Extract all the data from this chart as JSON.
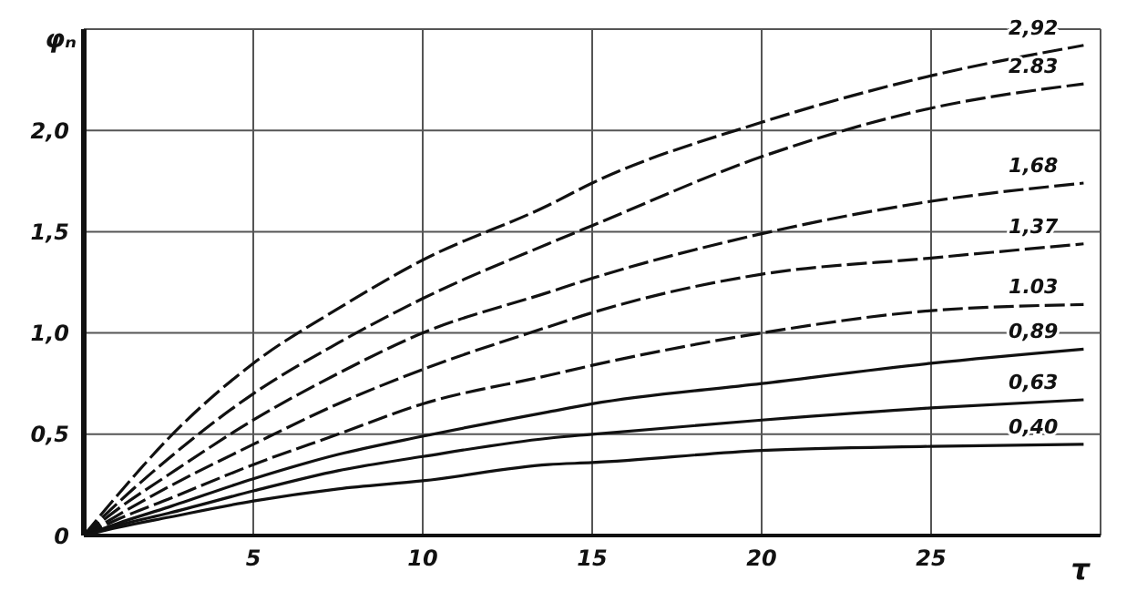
{
  "chart_data": {
    "type": "line",
    "xlabel": "τ",
    "ylabel": "φₙ",
    "x": [
      0,
      1,
      2.5,
      5,
      7.5,
      10,
      13.7,
      15,
      20,
      25,
      29.5
    ],
    "series": [
      {
        "name": "2,92",
        "color": "#111111",
        "line_style": "dashed",
        "values": [
          0,
          0.2,
          0.48,
          0.85,
          1.12,
          1.36,
          1.63,
          1.74,
          2.04,
          2.27,
          2.42
        ]
      },
      {
        "name": "2.83",
        "color": "#111111",
        "line_style": "dashed",
        "values": [
          0,
          0.16,
          0.38,
          0.7,
          0.95,
          1.17,
          1.44,
          1.53,
          1.87,
          2.11,
          2.23
        ]
      },
      {
        "name": "1,68",
        "color": "#111111",
        "line_style": "dashed",
        "values": [
          0,
          0.13,
          0.3,
          0.57,
          0.8,
          1.0,
          1.2,
          1.27,
          1.49,
          1.65,
          1.74
        ]
      },
      {
        "name": "1,37",
        "color": "#111111",
        "line_style": "dashed",
        "values": [
          0,
          0.1,
          0.24,
          0.45,
          0.65,
          0.82,
          1.03,
          1.1,
          1.29,
          1.37,
          1.44
        ]
      },
      {
        "name": "1.03",
        "color": "#111111",
        "line_style": "dashed",
        "values": [
          0,
          0.08,
          0.18,
          0.35,
          0.5,
          0.65,
          0.79,
          0.84,
          1.0,
          1.11,
          1.14
        ]
      },
      {
        "name": "0,89",
        "color": "#111111",
        "line_style": "solid",
        "values": [
          0,
          0.06,
          0.14,
          0.28,
          0.4,
          0.49,
          0.61,
          0.65,
          0.75,
          0.85,
          0.92
        ]
      },
      {
        "name": "0,63",
        "color": "#111111",
        "line_style": "solid",
        "values": [
          0,
          0.05,
          0.11,
          0.22,
          0.32,
          0.39,
          0.48,
          0.5,
          0.57,
          0.63,
          0.67
        ]
      },
      {
        "name": "0,40",
        "color": "#111111",
        "line_style": "solid",
        "values": [
          0,
          0.04,
          0.09,
          0.17,
          0.23,
          0.27,
          0.35,
          0.36,
          0.42,
          0.44,
          0.45
        ]
      }
    ],
    "xlim": [
      0,
      30
    ],
    "xticks": [
      5,
      10,
      15,
      20,
      25
    ],
    "ylim": [
      0,
      2.5
    ],
    "yticks": [
      0,
      {
        "value": 0.5,
        "label": "0,5"
      },
      {
        "value": 1.0,
        "label": "1,0"
      },
      {
        "value": 1.5,
        "label": "1,5"
      },
      {
        "value": 2.0,
        "label": "2,0"
      }
    ],
    "grid": true,
    "marker": "none"
  }
}
